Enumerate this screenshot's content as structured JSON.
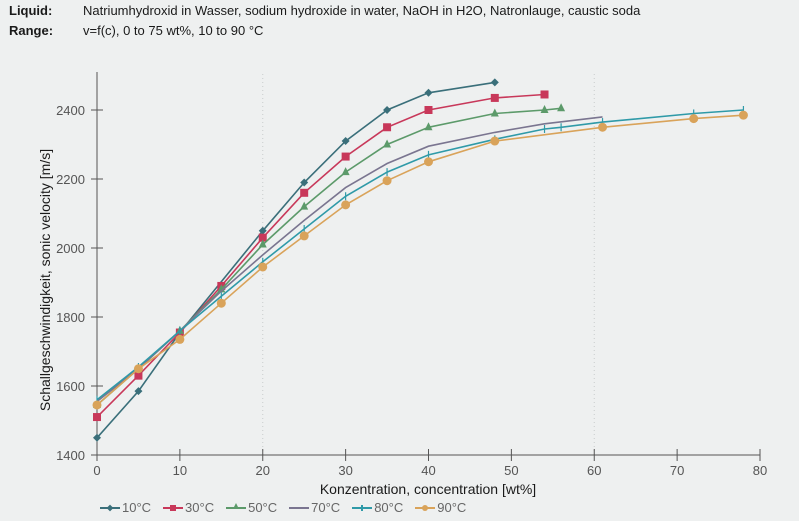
{
  "header": {
    "liquid_label": "Liquid:",
    "liquid_value": "Natriumhydroxid in Wasser, sodium hydroxide in water, NaOH in H2O, Natronlauge, caustic soda",
    "range_label": "Range:",
    "range_value": "v=f(c), 0 to 75 wt%, 10 to 90 °C"
  },
  "chart_data": {
    "type": "line",
    "title": "",
    "xlabel": "Konzentration, concentration [wt%]",
    "ylabel": "Schallgeschwindigkeit, sonic velocity [m/s]",
    "xlim": [
      0,
      80
    ],
    "ylim": [
      1400,
      2500
    ],
    "xticks": [
      0,
      10,
      20,
      30,
      40,
      50,
      60,
      70,
      80
    ],
    "yticks": [
      1400,
      1600,
      1800,
      2000,
      2200,
      2400
    ],
    "grid": "vertical dotted at x=20 and x=60",
    "legend_position": "bottom",
    "series": [
      {
        "name": "10°C",
        "color": "#3a6f7a",
        "marker": "diamond",
        "x": [
          0,
          5,
          10,
          20,
          25,
          30,
          35,
          40,
          48
        ],
        "y": [
          1450,
          1585,
          1755,
          2050,
          2190,
          2310,
          2400,
          2450,
          2480
        ]
      },
      {
        "name": "30°C",
        "color": "#c8385a",
        "marker": "square",
        "x": [
          0,
          5,
          10,
          15,
          20,
          25,
          30,
          35,
          40,
          48,
          54
        ],
        "y": [
          1510,
          1630,
          1755,
          1890,
          2030,
          2160,
          2265,
          2350,
          2400,
          2435,
          2445
        ]
      },
      {
        "name": "50°C",
        "color": "#5c9a6a",
        "marker": "triangle",
        "x": [
          0,
          5,
          10,
          15,
          20,
          25,
          30,
          35,
          40,
          48,
          54,
          56
        ],
        "y": [
          1545,
          1650,
          1760,
          1880,
          2010,
          2120,
          2220,
          2300,
          2350,
          2390,
          2400,
          2405
        ]
      },
      {
        "name": "70°C",
        "color": "#7a7590",
        "marker": "none",
        "x": [
          0,
          5,
          10,
          15,
          20,
          25,
          30,
          35,
          40,
          48,
          54,
          61
        ],
        "y": [
          1555,
          1650,
          1760,
          1875,
          1980,
          2080,
          2175,
          2245,
          2295,
          2335,
          2360,
          2380
        ]
      },
      {
        "name": "80°C",
        "color": "#2f9aa8",
        "marker": "plus",
        "x": [
          0,
          5,
          10,
          15,
          20,
          25,
          30,
          35,
          40,
          48,
          54,
          56,
          61,
          72,
          78
        ],
        "y": [
          1560,
          1655,
          1760,
          1860,
          1960,
          2055,
          2150,
          2220,
          2270,
          2315,
          2345,
          2350,
          2365,
          2390,
          2400
        ]
      },
      {
        "name": "90°C",
        "color": "#d9a35a",
        "marker": "circle",
        "x": [
          0,
          5,
          10,
          15,
          20,
          25,
          30,
          35,
          40,
          48,
          61,
          72,
          78
        ],
        "y": [
          1545,
          1650,
          1735,
          1840,
          1945,
          2035,
          2125,
          2195,
          2250,
          2310,
          2350,
          2375,
          2385
        ]
      }
    ]
  },
  "legend": [
    {
      "label": "10°C",
      "color": "#3a6f7a",
      "marker": "diamond"
    },
    {
      "label": "30°C",
      "color": "#c8385a",
      "marker": "square"
    },
    {
      "label": "50°C",
      "color": "#5c9a6a",
      "marker": "triangle"
    },
    {
      "label": "70°C",
      "color": "#7a7590",
      "marker": "none"
    },
    {
      "label": "80°C",
      "color": "#2f9aa8",
      "marker": "plus"
    },
    {
      "label": "90°C",
      "color": "#d9a35a",
      "marker": "circle"
    }
  ]
}
